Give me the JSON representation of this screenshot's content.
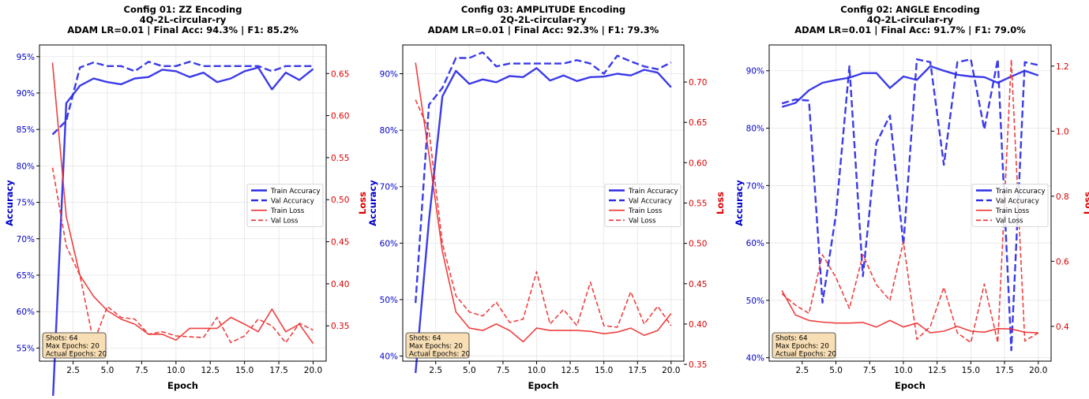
{
  "chart_data": [
    {
      "type": "line",
      "title": "Config 01: ZZ Encoding",
      "subtitle1": "4Q-2L-circular-ry",
      "subtitle2": "ADAM LR=0.01 | Final Acc: 94.3% | F1: 85.2%",
      "xlabel": "Epoch",
      "ylabel_left": "Accuracy",
      "ylabel_right": "Loss",
      "xlim": [
        0.05,
        20.95
      ],
      "ylim_left": [
        0.532,
        0.966
      ],
      "ylim_right": [
        0.308,
        0.684
      ],
      "xticks": [
        2.5,
        5.0,
        7.5,
        10.0,
        12.5,
        15.0,
        17.5,
        20.0
      ],
      "xtick_labels": [
        "2.5",
        "5.0",
        "7.5",
        "10.0",
        "12.5",
        "15.0",
        "17.5",
        "20.0"
      ],
      "yticks_left": [
        0.55,
        0.6,
        0.65,
        0.7,
        0.75,
        0.8,
        0.85,
        0.9,
        0.95
      ],
      "yticks_left_labels": [
        "55%",
        "60%",
        "65%",
        "70%",
        "75%",
        "80%",
        "85%",
        "90%",
        "95%"
      ],
      "yticks_right": [
        0.35,
        0.4,
        0.45,
        0.5,
        0.55,
        0.6,
        0.65
      ],
      "yticks_right_labels": [
        "0.35",
        "0.40",
        "0.45",
        "0.50",
        "0.55",
        "0.60",
        "0.65"
      ],
      "x": [
        1,
        2,
        3,
        4,
        5,
        6,
        7,
        8,
        9,
        10,
        11,
        12,
        13,
        14,
        15,
        16,
        17,
        18,
        19,
        20
      ],
      "series": [
        {
          "name": "Train Accuracy",
          "axis": "left",
          "style": "solid-thick",
          "color": "#2a2ae8",
          "values": [
            0.467,
            0.886,
            0.91,
            0.92,
            0.915,
            0.912,
            0.92,
            0.922,
            0.932,
            0.93,
            0.922,
            0.928,
            0.915,
            0.92,
            0.93,
            0.935,
            0.905,
            0.928,
            0.918,
            0.933
          ]
        },
        {
          "name": "Val Accuracy",
          "axis": "left",
          "style": "dashed-thick",
          "color": "#2a2ae8",
          "values": [
            0.843,
            0.862,
            0.935,
            0.942,
            0.937,
            0.937,
            0.93,
            0.943,
            0.937,
            0.937,
            0.943,
            0.937,
            0.937,
            0.937,
            0.937,
            0.937,
            0.93,
            0.937,
            0.937,
            0.937
          ]
        },
        {
          "name": "Train Loss",
          "axis": "right",
          "style": "solid-thin",
          "color": "#ee3030",
          "values": [
            0.663,
            0.48,
            0.41,
            0.385,
            0.368,
            0.358,
            0.352,
            0.34,
            0.34,
            0.333,
            0.347,
            0.347,
            0.347,
            0.36,
            0.352,
            0.343,
            0.37,
            0.343,
            0.352,
            0.329
          ]
        },
        {
          "name": "Val Loss",
          "axis": "right",
          "style": "dashed-thin",
          "color": "#ee3030",
          "values": [
            0.538,
            0.445,
            0.41,
            0.33,
            0.373,
            0.36,
            0.358,
            0.34,
            0.343,
            0.338,
            0.337,
            0.336,
            0.36,
            0.33,
            0.338,
            0.358,
            0.35,
            0.33,
            0.353,
            0.345
          ]
        }
      ],
      "legend": [
        "Train Accuracy",
        "Val Accuracy",
        "Train Loss",
        "Val Loss"
      ],
      "legend_position": "center-right",
      "grid": true,
      "info_box": [
        "Shots: 64",
        "Max Epochs: 20",
        "Actual Epochs: 20"
      ]
    },
    {
      "type": "line",
      "title": "Config 03: AMPLITUDE Encoding",
      "subtitle1": "2Q-2L-circular-ry",
      "subtitle2": "ADAM LR=0.01 | Final Acc: 92.3% | F1: 79.3%",
      "xlabel": "Epoch",
      "ylabel_left": "Accuracy",
      "ylabel_right": "Loss",
      "xlim": [
        0.05,
        20.95
      ],
      "ylim_left": [
        0.391,
        0.951
      ],
      "ylim_right": [
        0.354,
        0.746
      ],
      "xticks": [
        2.5,
        5.0,
        7.5,
        10.0,
        12.5,
        15.0,
        17.5,
        20.0
      ],
      "xtick_labels": [
        "2.5",
        "5.0",
        "7.5",
        "10.0",
        "12.5",
        "15.0",
        "17.5",
        "20.0"
      ],
      "yticks_left": [
        0.4,
        0.5,
        0.6,
        0.7,
        0.8,
        0.9
      ],
      "yticks_left_labels": [
        "40%",
        "50%",
        "60%",
        "70%",
        "80%",
        "90%"
      ],
      "yticks_right": [
        0.35,
        0.4,
        0.45,
        0.5,
        0.55,
        0.6,
        0.65,
        0.7
      ],
      "yticks_right_labels": [
        "0.35",
        "0.40",
        "0.45",
        "0.50",
        "0.55",
        "0.60",
        "0.65",
        "0.70"
      ],
      "x": [
        1,
        2,
        3,
        4,
        5,
        6,
        7,
        8,
        9,
        10,
        11,
        12,
        13,
        14,
        15,
        16,
        17,
        18,
        19,
        20
      ],
      "series": [
        {
          "name": "Train Accuracy",
          "axis": "left",
          "style": "solid-thick",
          "color": "#2a2ae8",
          "values": [
            0.37,
            0.64,
            0.86,
            0.905,
            0.882,
            0.89,
            0.885,
            0.896,
            0.894,
            0.91,
            0.888,
            0.897,
            0.887,
            0.894,
            0.895,
            0.9,
            0.897,
            0.907,
            0.902,
            0.876
          ]
        },
        {
          "name": "Val Accuracy",
          "axis": "left",
          "style": "dashed-thick",
          "color": "#2a2ae8",
          "values": [
            0.494,
            0.845,
            0.875,
            0.928,
            0.928,
            0.938,
            0.913,
            0.918,
            0.918,
            0.918,
            0.918,
            0.918,
            0.924,
            0.918,
            0.9,
            0.932,
            0.922,
            0.913,
            0.908,
            0.92
          ]
        },
        {
          "name": "Train Loss",
          "axis": "right",
          "style": "solid-thin",
          "color": "#ee3030",
          "values": [
            0.724,
            0.61,
            0.49,
            0.415,
            0.395,
            0.392,
            0.4,
            0.392,
            0.378,
            0.395,
            0.392,
            0.392,
            0.392,
            0.391,
            0.388,
            0.39,
            0.395,
            0.386,
            0.392,
            0.413
          ]
        },
        {
          "name": "Val Loss",
          "axis": "right",
          "style": "dashed-thin",
          "color": "#ee3030",
          "values": [
            0.678,
            0.64,
            0.5,
            0.435,
            0.415,
            0.41,
            0.427,
            0.402,
            0.406,
            0.465,
            0.4,
            0.418,
            0.398,
            0.452,
            0.398,
            0.396,
            0.44,
            0.4,
            0.422,
            0.398
          ]
        }
      ],
      "legend": [
        "Train Accuracy",
        "Val Accuracy",
        "Train Loss",
        "Val Loss"
      ],
      "legend_position": "center-right",
      "grid": true,
      "info_box": [
        "Shots: 64",
        "Max Epochs: 20",
        "Actual Epochs: 20"
      ]
    },
    {
      "type": "line",
      "title": "Config 02: ANGLE Encoding",
      "subtitle1": "4Q-2L-circular-ry",
      "subtitle2": "ADAM LR=0.01 | Final Acc: 91.7% | F1: 79.0%",
      "xlabel": "Epoch",
      "ylabel_left": "Accuracy",
      "ylabel_right": "Loss",
      "xlim": [
        0.05,
        20.95
      ],
      "ylim_left": [
        0.394,
        0.945
      ],
      "ylim_right": [
        0.293,
        1.265
      ],
      "xticks": [
        2.5,
        5.0,
        7.5,
        10.0,
        12.5,
        15.0,
        17.5,
        20.0
      ],
      "xtick_labels": [
        "2.5",
        "5.0",
        "7.5",
        "10.0",
        "12.5",
        "15.0",
        "17.5",
        "20.0"
      ],
      "yticks_left": [
        0.4,
        0.5,
        0.6,
        0.7,
        0.8,
        0.9
      ],
      "yticks_left_labels": [
        "40%",
        "50%",
        "60%",
        "70%",
        "80%",
        "90%"
      ],
      "yticks_right": [
        0.4,
        0.6,
        0.8,
        1.0,
        1.2
      ],
      "yticks_right_labels": [
        "0.4",
        "0.6",
        "0.8",
        "1.0",
        "1.2"
      ],
      "x": [
        1,
        2,
        3,
        4,
        5,
        6,
        7,
        8,
        9,
        10,
        11,
        12,
        13,
        14,
        15,
        16,
        17,
        18,
        19,
        20
      ],
      "series": [
        {
          "name": "Train Accuracy",
          "axis": "left",
          "style": "solid-thick",
          "color": "#2a2ae8",
          "values": [
            0.837,
            0.844,
            0.866,
            0.879,
            0.884,
            0.888,
            0.896,
            0.896,
            0.87,
            0.89,
            0.884,
            0.908,
            0.9,
            0.893,
            0.89,
            0.889,
            0.879,
            0.89,
            0.9,
            0.892
          ]
        },
        {
          "name": "Val Accuracy",
          "axis": "left",
          "style": "dashed-thick",
          "color": "#2a2ae8",
          "values": [
            0.843,
            0.85,
            0.848,
            0.496,
            0.65,
            0.908,
            0.542,
            0.774,
            0.822,
            0.597,
            0.92,
            0.915,
            0.736,
            0.915,
            0.92,
            0.798,
            0.92,
            0.413,
            0.915,
            0.91
          ]
        },
        {
          "name": "Train Loss",
          "axis": "right",
          "style": "solid-thin",
          "color": "#ee3030",
          "values": [
            0.51,
            0.435,
            0.418,
            0.413,
            0.41,
            0.41,
            0.412,
            0.398,
            0.418,
            0.398,
            0.41,
            0.38,
            0.385,
            0.4,
            0.385,
            0.382,
            0.393,
            0.392,
            0.382,
            0.38
          ]
        },
        {
          "name": "Val Loss",
          "axis": "right",
          "style": "dashed-thin",
          "color": "#ee3030",
          "values": [
            0.5,
            0.465,
            0.44,
            0.62,
            0.55,
            0.455,
            0.62,
            0.528,
            0.48,
            0.66,
            0.36,
            0.4,
            0.52,
            0.38,
            0.35,
            0.53,
            0.35,
            1.22,
            0.355,
            0.38
          ]
        }
      ],
      "legend": [
        "Train Accuracy",
        "Val Accuracy",
        "Train Loss",
        "Val Loss"
      ],
      "legend_position": "center-right",
      "grid": true,
      "info_box": [
        "Shots: 64",
        "Max Epochs: 20",
        "Actual Epochs: 20"
      ]
    }
  ]
}
